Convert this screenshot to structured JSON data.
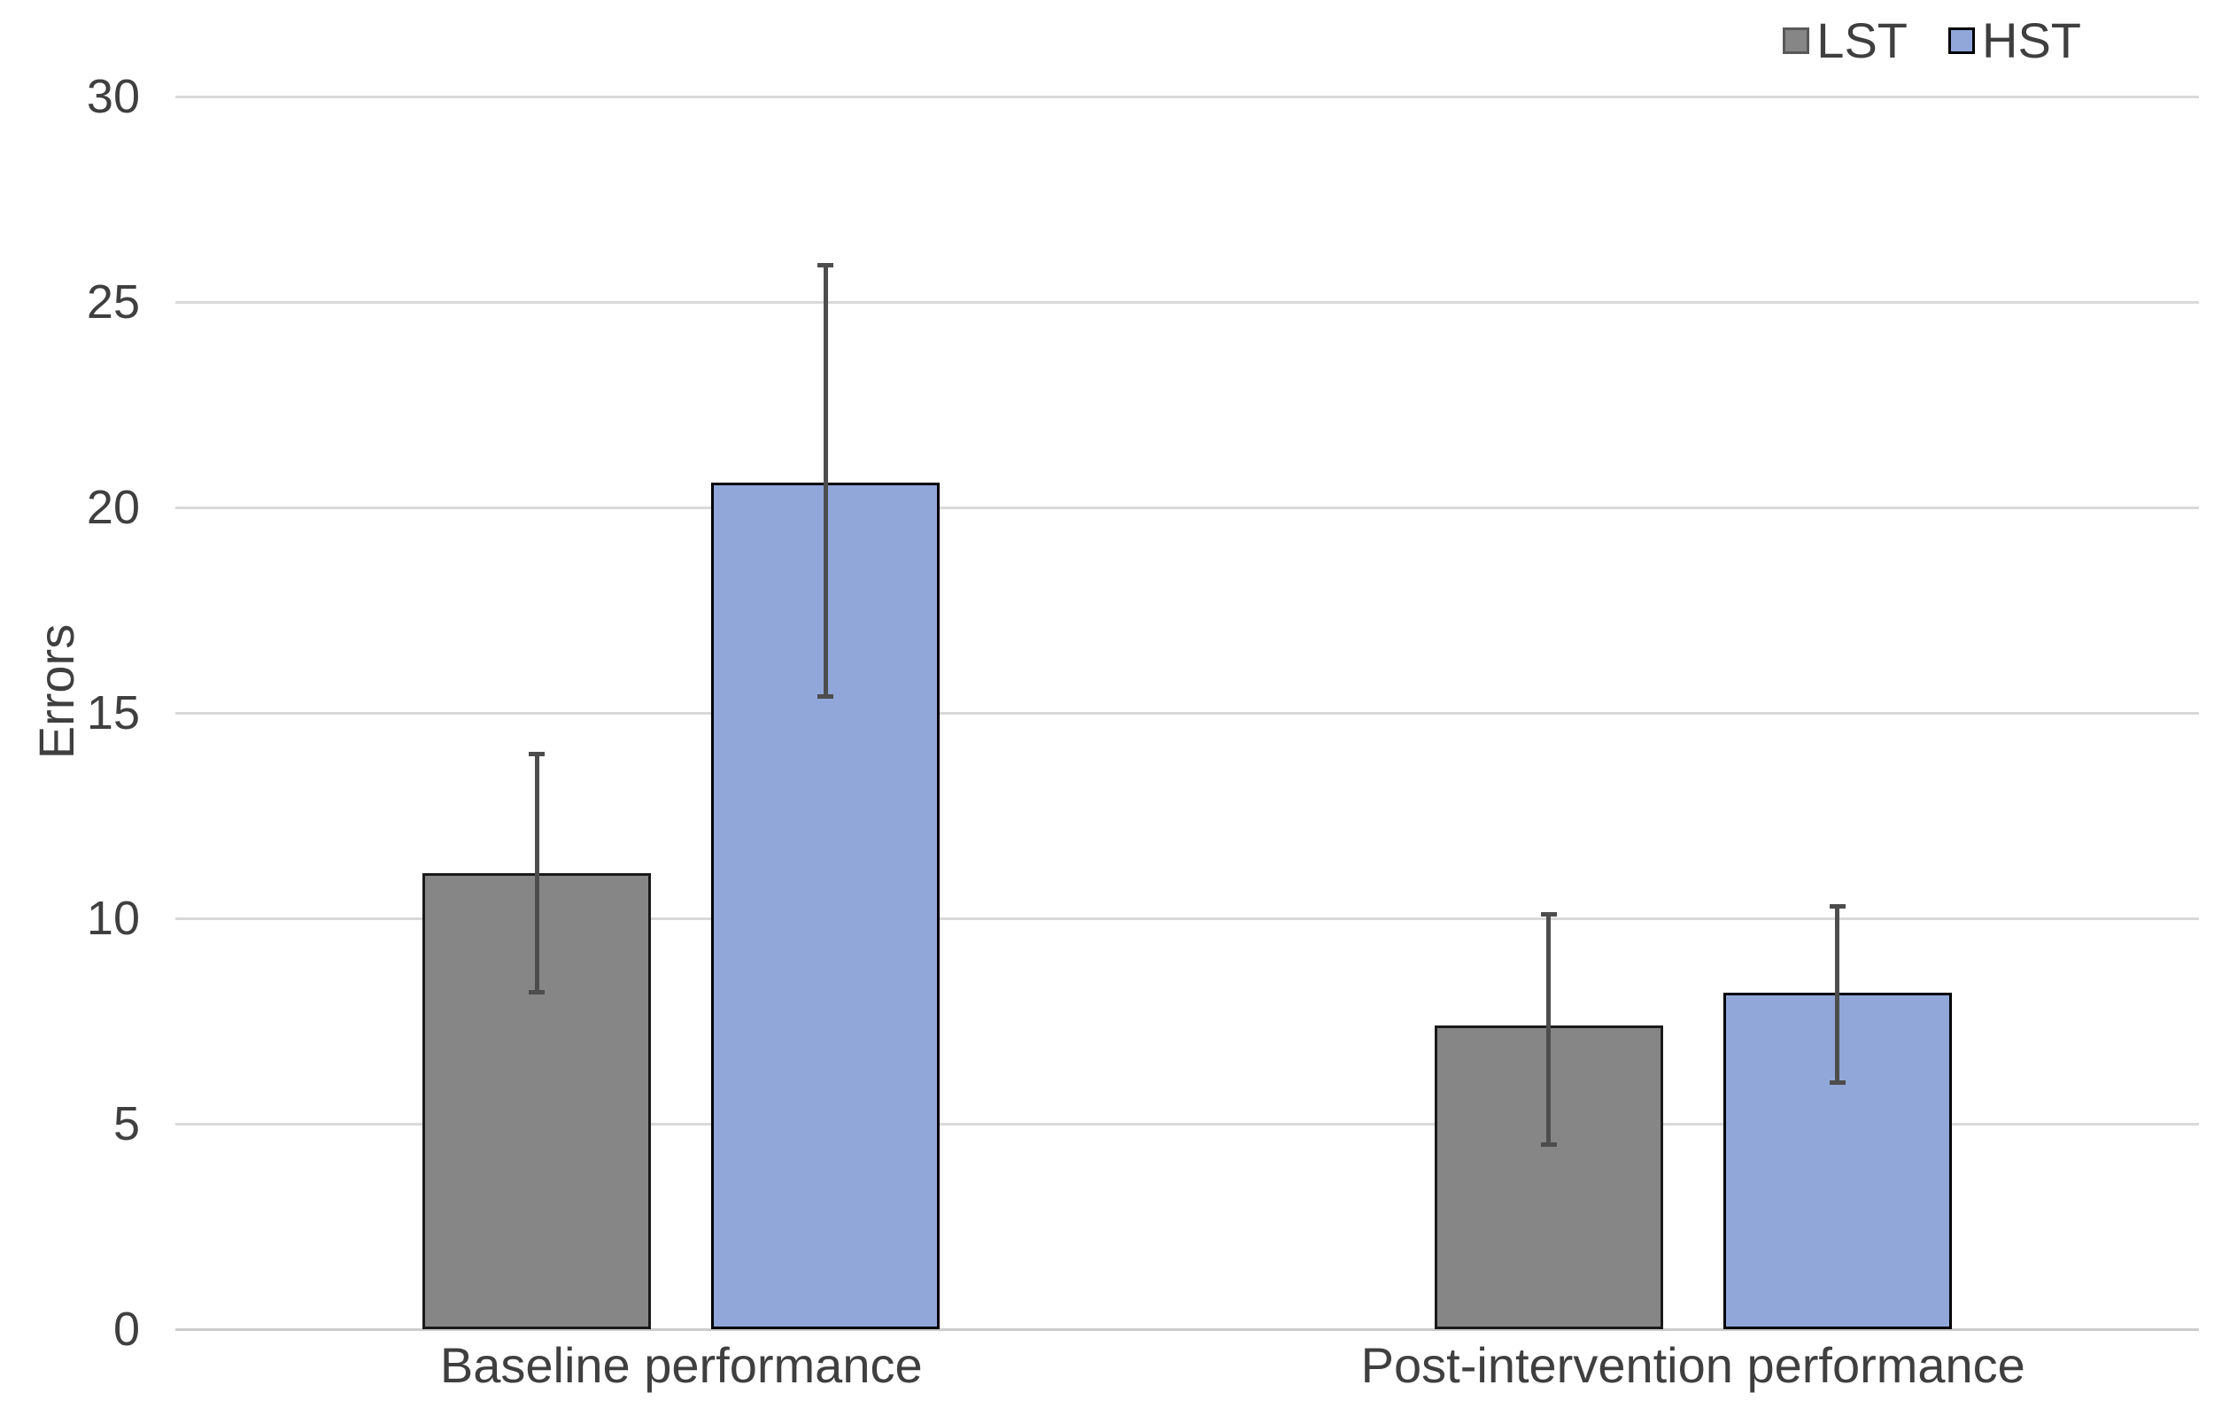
{
  "chart_data": {
    "type": "bar",
    "title": "",
    "xlabel": "",
    "ylabel": "Errors",
    "categories": [
      "Baseline performance",
      "Post-intervention performance"
    ],
    "series": [
      {
        "name": "LST",
        "color": "#868686",
        "border": "#1a1a1a",
        "legend_border": "#595959",
        "values": [
          11.1,
          7.4
        ],
        "error_low": [
          8.2,
          4.5
        ],
        "error_high": [
          14.0,
          10.1
        ]
      },
      {
        "name": "HST",
        "color": "#91A7DA",
        "border": "#000000",
        "legend_border": "#000000",
        "values": [
          20.6,
          8.2
        ],
        "error_low": [
          15.4,
          6.0
        ],
        "error_high": [
          25.9,
          10.3
        ]
      }
    ],
    "ylim": [
      0,
      30
    ],
    "ytick_step": 5,
    "yticks": [
      0,
      5,
      10,
      15,
      20,
      25,
      30
    ],
    "grid": true,
    "legend_position": "top-right",
    "error_bar_color": "#4d4d4d",
    "gridline_color": "#d9d9d9",
    "text_color": "#3f3f3f"
  }
}
